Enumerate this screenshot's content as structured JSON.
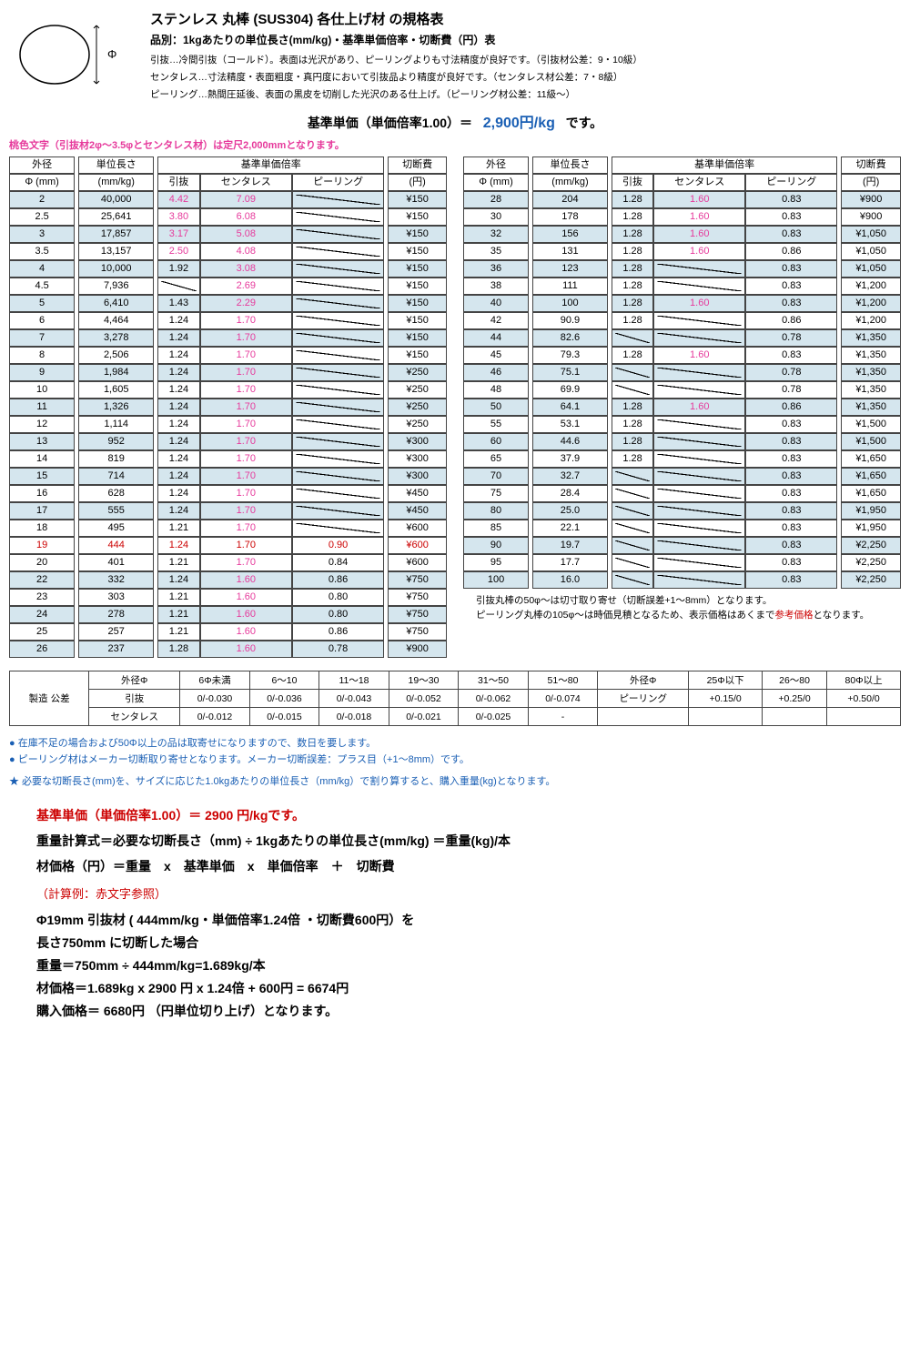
{
  "header": {
    "title": "ステンレス 丸棒 (SUS304) 各仕上げ材 の規格表",
    "subtitle": "品別：1kgあたりの単位長さ(mm/kg)・基準単価倍率・切断費（円）表",
    "desc1": "引抜…冷間引抜（コールド）。表面は光沢があり、ピーリングよりも寸法精度が良好です。（引抜材公差：9・10級）",
    "desc2": "センタレス…寸法精度・表面粗度・真円度において引抜品より精度が良好です。（センタレス材公差：7・8級）",
    "desc3": "ピーリング…熱間圧延後、表面の黒皮を切削した光沢のある仕上げ。（ピーリング材公差：11級～）",
    "base_price_label": "基準単価（単価倍率1.00）＝",
    "base_price_value": "2,900円/kg",
    "base_price_suffix": "です。",
    "pink_note": "桃色文字（引抜材2φ～3.5φとセンタレス材）は定尺2,000mmとなります。"
  },
  "table_headers": {
    "h_outer": "外径",
    "h_unitlen": "単位長さ",
    "h_rate": "基準単価倍率",
    "h_cut": "切断費",
    "h_phi": "Φ (mm)",
    "h_mmkg": "(mm/kg)",
    "h_hiki": "引抜",
    "h_centa": "センタレス",
    "h_peel": "ピーリング",
    "h_yen": "(円)"
  },
  "left_rows": [
    {
      "tint": 1,
      "d": "2",
      "u": "40,000",
      "h": "4.42",
      "hp": 1,
      "c": "7.09",
      "cp": 1,
      "p": "/",
      "cut": "¥150"
    },
    {
      "tint": 0,
      "d": "2.5",
      "u": "25,641",
      "h": "3.80",
      "hp": 1,
      "c": "6.08",
      "cp": 1,
      "p": "/",
      "cut": "¥150"
    },
    {
      "tint": 1,
      "d": "3",
      "u": "17,857",
      "h": "3.17",
      "hp": 1,
      "c": "5.08",
      "cp": 1,
      "p": "/",
      "cut": "¥150"
    },
    {
      "tint": 0,
      "d": "3.5",
      "u": "13,157",
      "h": "2.50",
      "hp": 1,
      "c": "4.08",
      "cp": 1,
      "p": "/",
      "cut": "¥150"
    },
    {
      "tint": 1,
      "d": "4",
      "u": "10,000",
      "h": "1.92",
      "hp": 0,
      "c": "3.08",
      "cp": 1,
      "p": "/",
      "cut": "¥150"
    },
    {
      "tint": 0,
      "d": "4.5",
      "u": "7,936",
      "h": "/",
      "hp": 0,
      "c": "2.69",
      "cp": 1,
      "p": "/",
      "cut": "¥150"
    },
    {
      "tint": 1,
      "d": "5",
      "u": "6,410",
      "h": "1.43",
      "hp": 0,
      "c": "2.29",
      "cp": 1,
      "p": "/",
      "cut": "¥150"
    },
    {
      "tint": 0,
      "d": "6",
      "u": "4,464",
      "h": "1.24",
      "hp": 0,
      "c": "1.70",
      "cp": 1,
      "p": "/",
      "cut": "¥150"
    },
    {
      "tint": 1,
      "d": "7",
      "u": "3,278",
      "h": "1.24",
      "hp": 0,
      "c": "1.70",
      "cp": 1,
      "p": "/",
      "cut": "¥150"
    },
    {
      "tint": 0,
      "d": "8",
      "u": "2,506",
      "h": "1.24",
      "hp": 0,
      "c": "1.70",
      "cp": 1,
      "p": "/",
      "cut": "¥150"
    },
    {
      "tint": 1,
      "d": "9",
      "u": "1,984",
      "h": "1.24",
      "hp": 0,
      "c": "1.70",
      "cp": 1,
      "p": "/",
      "cut": "¥250"
    },
    {
      "tint": 0,
      "d": "10",
      "u": "1,605",
      "h": "1.24",
      "hp": 0,
      "c": "1.70",
      "cp": 1,
      "p": "/",
      "cut": "¥250"
    },
    {
      "tint": 1,
      "d": "11",
      "u": "1,326",
      "h": "1.24",
      "hp": 0,
      "c": "1.70",
      "cp": 1,
      "p": "/",
      "cut": "¥250"
    },
    {
      "tint": 0,
      "d": "12",
      "u": "1,114",
      "h": "1.24",
      "hp": 0,
      "c": "1.70",
      "cp": 1,
      "p": "/",
      "cut": "¥250"
    },
    {
      "tint": 1,
      "d": "13",
      "u": "952",
      "h": "1.24",
      "hp": 0,
      "c": "1.70",
      "cp": 1,
      "p": "/",
      "cut": "¥300"
    },
    {
      "tint": 0,
      "d": "14",
      "u": "819",
      "h": "1.24",
      "hp": 0,
      "c": "1.70",
      "cp": 1,
      "p": "/",
      "cut": "¥300"
    },
    {
      "tint": 1,
      "d": "15",
      "u": "714",
      "h": "1.24",
      "hp": 0,
      "c": "1.70",
      "cp": 1,
      "p": "/",
      "cut": "¥300"
    },
    {
      "tint": 0,
      "d": "16",
      "u": "628",
      "h": "1.24",
      "hp": 0,
      "c": "1.70",
      "cp": 1,
      "p": "/",
      "cut": "¥450"
    },
    {
      "tint": 1,
      "d": "17",
      "u": "555",
      "h": "1.24",
      "hp": 0,
      "c": "1.70",
      "cp": 1,
      "p": "/",
      "cut": "¥450"
    },
    {
      "tint": 0,
      "d": "18",
      "u": "495",
      "h": "1.21",
      "hp": 0,
      "c": "1.70",
      "cp": 1,
      "p": "/",
      "cut": "¥600"
    },
    {
      "tint": 0,
      "d": "19",
      "u": "444",
      "h": "1.24",
      "hp": 0,
      "c": "1.70",
      "cp": 1,
      "p": "0.90",
      "cut": "¥600",
      "red": 1
    },
    {
      "tint": 0,
      "d": "20",
      "u": "401",
      "h": "1.21",
      "hp": 0,
      "c": "1.70",
      "cp": 1,
      "p": "0.84",
      "cut": "¥600"
    },
    {
      "tint": 1,
      "d": "22",
      "u": "332",
      "h": "1.24",
      "hp": 0,
      "c": "1.60",
      "cp": 1,
      "p": "0.86",
      "cut": "¥750"
    },
    {
      "tint": 0,
      "d": "23",
      "u": "303",
      "h": "1.21",
      "hp": 0,
      "c": "1.60",
      "cp": 1,
      "p": "0.80",
      "cut": "¥750"
    },
    {
      "tint": 1,
      "d": "24",
      "u": "278",
      "h": "1.21",
      "hp": 0,
      "c": "1.60",
      "cp": 1,
      "p": "0.80",
      "cut": "¥750"
    },
    {
      "tint": 0,
      "d": "25",
      "u": "257",
      "h": "1.21",
      "hp": 0,
      "c": "1.60",
      "cp": 1,
      "p": "0.86",
      "cut": "¥750"
    },
    {
      "tint": 1,
      "d": "26",
      "u": "237",
      "h": "1.28",
      "hp": 0,
      "c": "1.60",
      "cp": 1,
      "p": "0.78",
      "cut": "¥900"
    }
  ],
  "right_rows": [
    {
      "tint": 1,
      "d": "28",
      "u": "204",
      "h": "1.28",
      "hp": 0,
      "c": "1.60",
      "cp": 1,
      "p": "0.83",
      "cut": "¥900"
    },
    {
      "tint": 0,
      "d": "30",
      "u": "178",
      "h": "1.28",
      "hp": 0,
      "c": "1.60",
      "cp": 1,
      "p": "0.83",
      "cut": "¥900"
    },
    {
      "tint": 1,
      "d": "32",
      "u": "156",
      "h": "1.28",
      "hp": 0,
      "c": "1.60",
      "cp": 1,
      "p": "0.83",
      "cut": "¥1,050"
    },
    {
      "tint": 0,
      "d": "35",
      "u": "131",
      "h": "1.28",
      "hp": 0,
      "c": "1.60",
      "cp": 1,
      "p": "0.86",
      "cut": "¥1,050"
    },
    {
      "tint": 1,
      "d": "36",
      "u": "123",
      "h": "1.28",
      "hp": 0,
      "c": "/",
      "cp": 0,
      "p": "0.83",
      "cut": "¥1,050"
    },
    {
      "tint": 0,
      "d": "38",
      "u": "111",
      "h": "1.28",
      "hp": 0,
      "c": "/",
      "cp": 0,
      "p": "0.83",
      "cut": "¥1,200"
    },
    {
      "tint": 1,
      "d": "40",
      "u": "100",
      "h": "1.28",
      "hp": 0,
      "c": "1.60",
      "cp": 1,
      "p": "0.83",
      "cut": "¥1,200"
    },
    {
      "tint": 0,
      "d": "42",
      "u": "90.9",
      "h": "1.28",
      "hp": 0,
      "c": "/",
      "cp": 0,
      "p": "0.86",
      "cut": "¥1,200"
    },
    {
      "tint": 1,
      "d": "44",
      "u": "82.6",
      "h": "/",
      "hp": 0,
      "c": "/",
      "cp": 0,
      "p": "0.78",
      "cut": "¥1,350"
    },
    {
      "tint": 0,
      "d": "45",
      "u": "79.3",
      "h": "1.28",
      "hp": 0,
      "c": "1.60",
      "cp": 1,
      "p": "0.83",
      "cut": "¥1,350"
    },
    {
      "tint": 1,
      "d": "46",
      "u": "75.1",
      "h": "/",
      "hp": 0,
      "c": "/",
      "cp": 0,
      "p": "0.78",
      "cut": "¥1,350"
    },
    {
      "tint": 0,
      "d": "48",
      "u": "69.9",
      "h": "/",
      "hp": 0,
      "c": "/",
      "cp": 0,
      "p": "0.78",
      "cut": "¥1,350"
    },
    {
      "tint": 1,
      "d": "50",
      "u": "64.1",
      "h": "1.28",
      "hp": 0,
      "c": "1.60",
      "cp": 1,
      "p": "0.86",
      "cut": "¥1,350"
    },
    {
      "tint": 0,
      "d": "55",
      "u": "53.1",
      "h": "1.28",
      "hp": 0,
      "c": "/",
      "cp": 0,
      "p": "0.83",
      "cut": "¥1,500"
    },
    {
      "tint": 1,
      "d": "60",
      "u": "44.6",
      "h": "1.28",
      "hp": 0,
      "c": "/",
      "cp": 0,
      "p": "0.83",
      "cut": "¥1,500"
    },
    {
      "tint": 0,
      "d": "65",
      "u": "37.9",
      "h": "1.28",
      "hp": 0,
      "c": "/",
      "cp": 0,
      "p": "0.83",
      "cut": "¥1,650"
    },
    {
      "tint": 1,
      "d": "70",
      "u": "32.7",
      "h": "/",
      "hp": 0,
      "c": "/",
      "cp": 0,
      "p": "0.83",
      "cut": "¥1,650"
    },
    {
      "tint": 0,
      "d": "75",
      "u": "28.4",
      "h": "/",
      "hp": 0,
      "c": "/",
      "cp": 0,
      "p": "0.83",
      "cut": "¥1,650"
    },
    {
      "tint": 1,
      "d": "80",
      "u": "25.0",
      "h": "/",
      "hp": 0,
      "c": "/",
      "cp": 0,
      "p": "0.83",
      "cut": "¥1,950"
    },
    {
      "tint": 0,
      "d": "85",
      "u": "22.1",
      "h": "/",
      "hp": 0,
      "c": "/",
      "cp": 0,
      "p": "0.83",
      "cut": "¥1,950"
    },
    {
      "tint": 1,
      "d": "90",
      "u": "19.7",
      "h": "/",
      "hp": 0,
      "c": "/",
      "cp": 0,
      "p": "0.83",
      "cut": "¥2,250"
    },
    {
      "tint": 0,
      "d": "95",
      "u": "17.7",
      "h": "/",
      "hp": 0,
      "c": "/",
      "cp": 0,
      "p": "0.83",
      "cut": "¥2,250"
    },
    {
      "tint": 1,
      "d": "100",
      "u": "16.0",
      "h": "/",
      "hp": 0,
      "c": "/",
      "cp": 0,
      "p": "0.83",
      "cut": "¥2,250"
    }
  ],
  "note_box": {
    "line1": "引抜丸棒の50φ～は切寸取り寄せ（切断誤差+1～8mm）となります。",
    "line2a": "ピーリング丸棒の105φ～は時価見積となるため、表示価格はあくまで",
    "line2b": "参考価格",
    "line2c": "となります。"
  },
  "tolerance": {
    "vlabel": "製造\n公差",
    "r1": [
      "外径Φ",
      "6Φ未満",
      "6～10",
      "11～18",
      "19～30",
      "31～50",
      "51～80",
      "外径Φ",
      "25Φ以下",
      "26～80",
      "80Φ以上"
    ],
    "r2": [
      "引抜",
      "0/-0.030",
      "0/-0.036",
      "0/-0.043",
      "0/-0.052",
      "0/-0.062",
      "0/-0.074",
      "ピーリング",
      "+0.15/0",
      "+0.25/0",
      "+0.50/0"
    ],
    "r3": [
      "センタレス",
      "0/-0.012",
      "0/-0.015",
      "0/-0.018",
      "0/-0.021",
      "0/-0.025",
      "-",
      "",
      "",
      "",
      ""
    ]
  },
  "bullets": {
    "b1": "● 在庫不足の場合および50Φ以上の品は取寄せになりますので、数日を要します。",
    "b2": "● ピーリング材はメーカー切断取り寄せとなります。メーカー切断誤差：プラス目（+1～8mm）です。",
    "star": "★ 必要な切断長さ(mm)を、サイズに応じた1.0kgあたりの単位長さ（mm/kg）で割り算すると、購入重量(kg)となります。"
  },
  "calc": {
    "l1": "基準単価（単価倍率1.00）＝ 2900 円/kgです。",
    "l2": "重量計算式＝必要な切断長さ（mm) ÷ 1kgあたりの単位長さ(mm/kg) ＝重量(kg)/本",
    "l3": "材価格（円）＝重量　x　基準単価　x　単価倍率　＋　切断費",
    "sub": "（計算例：赤文字参照）",
    "e1": "Φ19mm 引抜材 ( 444mm/kg・単価倍率1.24倍 ・切断費600円）を",
    "e2": "長さ750mm に切断した場合",
    "e3": "重量＝750mm ÷ 444mm/kg=1.689kg/本",
    "e4": "材価格＝1.689kg x 2900 円 x 1.24倍 + 600円 = 6674円",
    "e5": "購入価格＝ 6680円 （円単位切り上げ）となります。"
  },
  "colors": {
    "tint": "#d5e6ee",
    "border": "#444444",
    "pink": "#e6399b",
    "red": "#cc0000",
    "blue": "#1a5fb4"
  }
}
